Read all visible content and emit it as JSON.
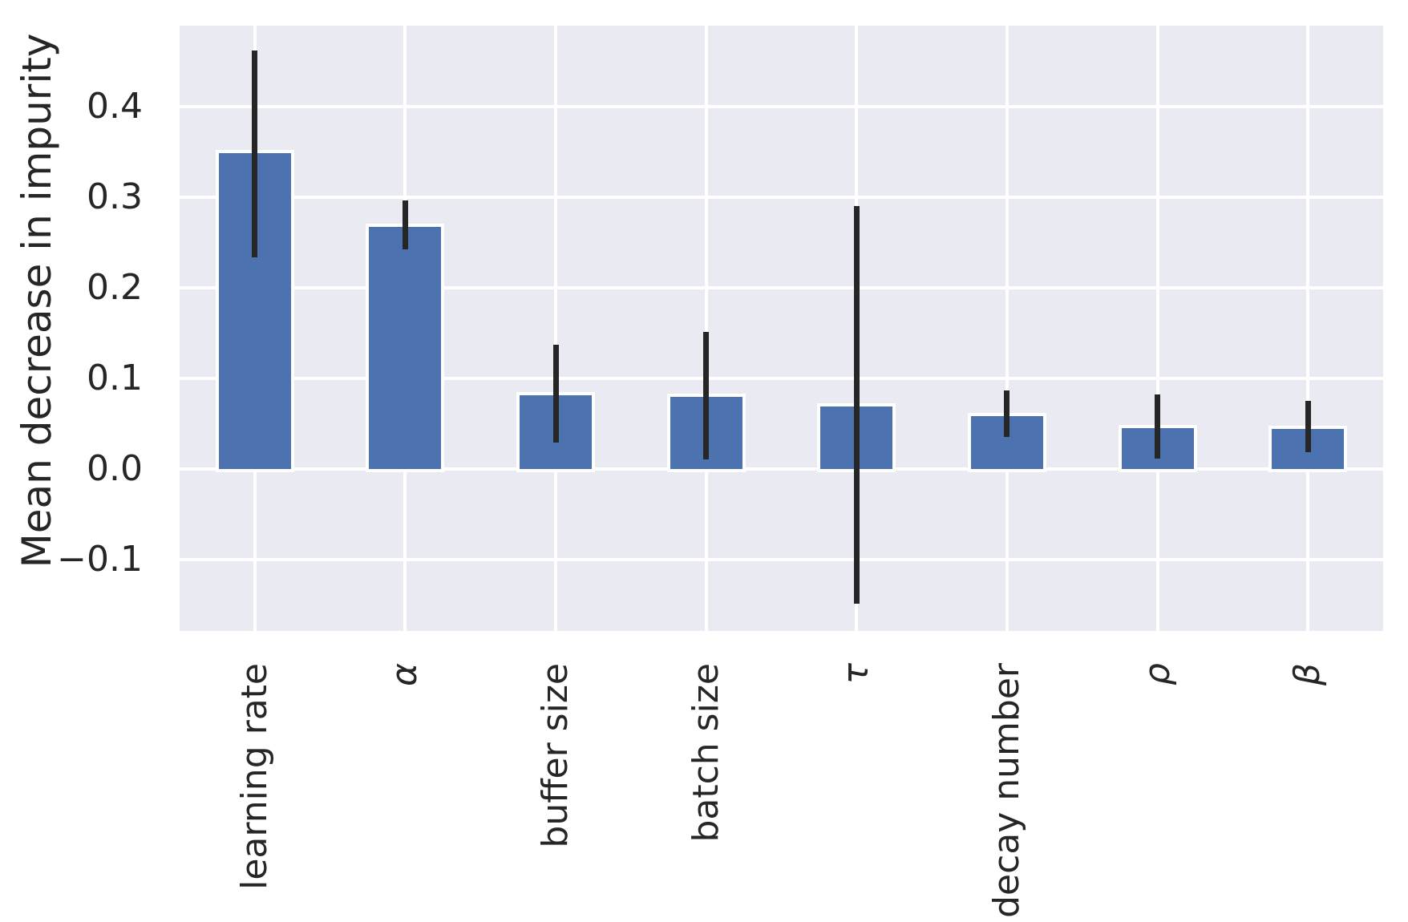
{
  "chart_data": {
    "type": "bar",
    "title": "",
    "xlabel": "",
    "ylabel": "Mean decrease in impurity",
    "categories": [
      "learning rate",
      "α",
      "buffer size",
      "batch size",
      "τ",
      "decay number",
      "ρ",
      "β"
    ],
    "values": [
      0.348,
      0.267,
      0.081,
      0.079,
      0.069,
      0.058,
      0.045,
      0.044
    ],
    "error_low": [
      0.233,
      0.242,
      0.029,
      0.01,
      -0.149,
      0.035,
      0.011,
      0.018
    ],
    "error_high": [
      0.462,
      0.296,
      0.137,
      0.151,
      0.29,
      0.086,
      0.082,
      0.075
    ],
    "ylim": [
      -0.179,
      0.489
    ],
    "yticks": [
      0.4,
      0.3,
      0.2,
      0.1,
      0.0,
      -0.1
    ],
    "ytick_labels": [
      "0.4",
      "0.3",
      "0.2",
      "0.1",
      "0.0",
      "−0.1"
    ],
    "grid": true,
    "legend": false,
    "colors": {
      "bar": "#4C72B0",
      "bar_edge": "#FFFFFF",
      "error_bar": "#262626",
      "plot_background": "#EAEAF2",
      "gridline": "#FFFFFF",
      "text": "#262626",
      "figure_background": "#FFFFFF"
    }
  }
}
